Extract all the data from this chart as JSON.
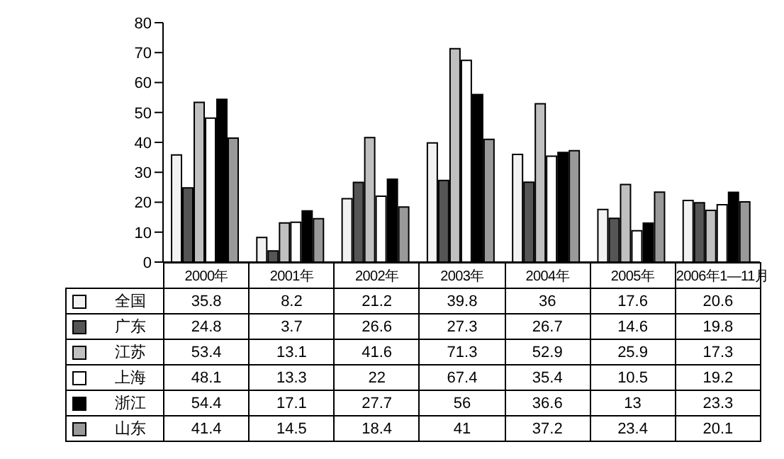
{
  "chart_data": {
    "type": "bar",
    "categories": [
      "2000年",
      "2001年",
      "2002年",
      "2003年",
      "2004年",
      "2005年",
      "2006年1—11月"
    ],
    "series": [
      {
        "name": "全国",
        "color": "#f2f2f2",
        "values": [
          35.8,
          8.2,
          21.2,
          39.8,
          36,
          17.6,
          20.6
        ]
      },
      {
        "name": "广东",
        "color": "#555555",
        "values": [
          24.8,
          3.7,
          26.6,
          27.3,
          26.7,
          14.6,
          19.8
        ]
      },
      {
        "name": "江苏",
        "color": "#c0c0c0",
        "values": [
          53.4,
          13.1,
          41.6,
          71.3,
          52.9,
          25.9,
          17.3
        ]
      },
      {
        "name": "上海",
        "color": "#ffffff",
        "values": [
          48.1,
          13.3,
          22,
          67.4,
          35.4,
          10.5,
          19.2
        ]
      },
      {
        "name": "浙江",
        "color": "#000000",
        "values": [
          54.4,
          17.1,
          27.7,
          56,
          36.6,
          13,
          23.3
        ]
      },
      {
        "name": "山东",
        "color": "#999999",
        "values": [
          41.4,
          14.5,
          18.4,
          41,
          37.2,
          23.4,
          20.1
        ]
      }
    ],
    "ylim": [
      0,
      80
    ],
    "yticks": [
      0,
      10,
      20,
      30,
      40,
      50,
      60,
      70,
      80
    ],
    "grid": false,
    "legend": "bottom",
    "data_labels": true
  }
}
